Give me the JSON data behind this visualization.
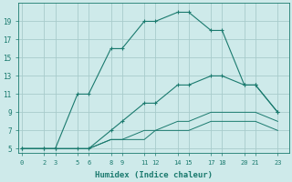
{
  "xlabel": "Humidex (Indice chaleur)",
  "bg_color": "#ceeaea",
  "line_color": "#1a7a6e",
  "grid_color": "#a8cccc",
  "lines": [
    {
      "x": [
        0,
        2,
        3,
        5,
        6,
        8,
        9,
        11,
        12,
        14,
        15,
        17,
        18,
        20,
        21,
        23
      ],
      "y": [
        5,
        5,
        5,
        11,
        11,
        16,
        16,
        19,
        19,
        20,
        20,
        18,
        18,
        12,
        12,
        9
      ],
      "marker": true
    },
    {
      "x": [
        0,
        2,
        3,
        5,
        6,
        8,
        9,
        11,
        12,
        14,
        15,
        17,
        18,
        20,
        21,
        23
      ],
      "y": [
        5,
        5,
        5,
        5,
        5,
        7,
        8,
        10,
        10,
        12,
        12,
        13,
        13,
        12,
        12,
        9
      ],
      "marker": true
    },
    {
      "x": [
        0,
        2,
        3,
        5,
        6,
        8,
        9,
        11,
        12,
        14,
        15,
        17,
        18,
        20,
        21,
        23
      ],
      "y": [
        5,
        5,
        5,
        5,
        5,
        6,
        6,
        7,
        7,
        8,
        8,
        9,
        9,
        9,
        9,
        8
      ],
      "marker": false
    },
    {
      "x": [
        0,
        2,
        3,
        5,
        6,
        8,
        9,
        11,
        12,
        14,
        15,
        17,
        18,
        20,
        21,
        23
      ],
      "y": [
        5,
        5,
        5,
        5,
        5,
        6,
        6,
        6,
        7,
        7,
        7,
        8,
        8,
        8,
        8,
        7
      ],
      "marker": false
    }
  ],
  "xticks": [
    0,
    2,
    3,
    5,
    6,
    8,
    9,
    11,
    12,
    14,
    15,
    17,
    18,
    20,
    21,
    23
  ],
  "yticks": [
    5,
    7,
    9,
    11,
    13,
    15,
    17,
    19
  ],
  "xlim": [
    -0.3,
    24
  ],
  "ylim": [
    4.5,
    21
  ]
}
